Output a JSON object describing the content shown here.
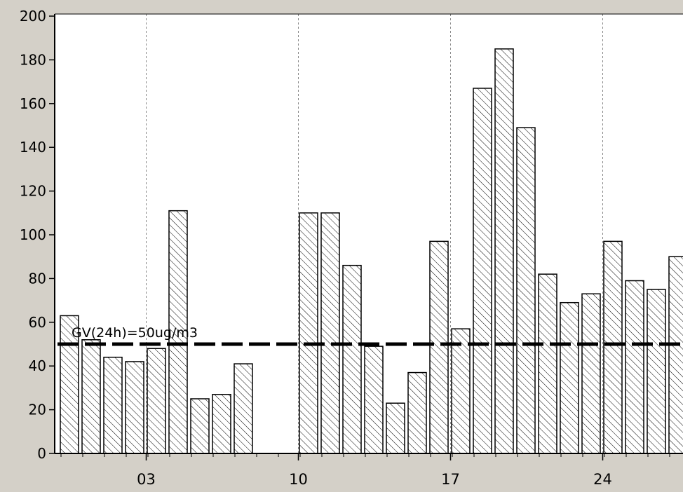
{
  "chart_data": {
    "type": "bar",
    "title": "",
    "xlabel": "",
    "ylabel": "",
    "ylim": [
      0,
      200
    ],
    "yticks": [
      0,
      20,
      40,
      60,
      80,
      100,
      120,
      140,
      160,
      180,
      200
    ],
    "x_tick_labels": [
      {
        "day": 3,
        "label": "03"
      },
      {
        "day": 10,
        "label": "10"
      },
      {
        "day": 17,
        "label": "17"
      },
      {
        "day": 24,
        "label": "24"
      }
    ],
    "days": [
      1,
      2,
      3,
      4,
      5,
      6,
      7,
      8,
      9,
      10,
      11,
      12,
      13,
      14,
      15,
      16,
      17,
      18,
      19,
      20,
      21,
      22,
      23,
      24,
      25,
      26,
      27,
      28,
      29,
      30
    ],
    "values": [
      63,
      52,
      44,
      42,
      48,
      111,
      25,
      27,
      41,
      null,
      null,
      110,
      110,
      86,
      49,
      23,
      37,
      97,
      57,
      167,
      185,
      149,
      82,
      69,
      73,
      97,
      79,
      75,
      90,
      null
    ],
    "vertical_gridlines_at_days": [
      3,
      10,
      17,
      24
    ],
    "reference_line": {
      "value": 50,
      "label": "GV(24h)=50ug/m3",
      "style": "dashed"
    },
    "grid": true,
    "legend": "none",
    "colors": {
      "background": "#d4d0c8",
      "plot_area": "#ffffff",
      "bar_fill": "#ffffff",
      "hatch": "#000000",
      "gridline": "#888888",
      "reference_line": "#000000"
    }
  }
}
